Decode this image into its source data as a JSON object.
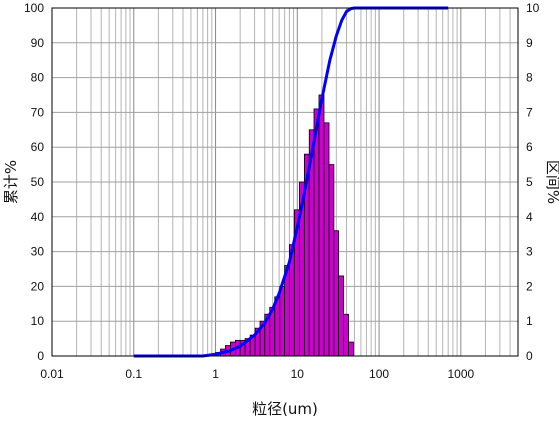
{
  "chart_data": {
    "type": "bar+line",
    "x_scale": "log",
    "xlim": [
      0.01,
      5000
    ],
    "xlabel": "粒径(um)",
    "ylabel_left": "累计%",
    "ylabel_right": "区间%",
    "ylim_left": [
      0,
      100
    ],
    "ylim_right": [
      0,
      10
    ],
    "x_ticks": [
      "0.01",
      "0.1",
      "1",
      "10",
      "100",
      "1000"
    ],
    "y_left_ticks": [
      "0",
      "10",
      "20",
      "30",
      "40",
      "50",
      "60",
      "70",
      "80",
      "90",
      "100"
    ],
    "y_right_ticks": [
      "0",
      "1",
      "2",
      "3",
      "4",
      "5",
      "6",
      "7",
      "8",
      "9",
      "10"
    ],
    "grid": true,
    "bar_color": "#cc00cc",
    "line_color": "#0000ff",
    "bar_edges": [
      1.0,
      1.15,
      1.32,
      1.52,
      1.75,
      2.0,
      2.3,
      2.65,
      3.05,
      3.5,
      4.0,
      4.6,
      5.3,
      6.1,
      7.0,
      8.0,
      9.2,
      10.6,
      12.2,
      14.0,
      16.0,
      18.4,
      21.2,
      24.4,
      28.0,
      32.0,
      36.8,
      42.3,
      48.6
    ],
    "bar_values": [
      0.1,
      0.2,
      0.3,
      0.4,
      0.45,
      0.45,
      0.5,
      0.6,
      0.8,
      1.0,
      1.2,
      1.4,
      1.7,
      2.0,
      2.6,
      3.2,
      4.2,
      5.0,
      5.8,
      6.5,
      7.1,
      7.5,
      6.7,
      5.5,
      3.6,
      2.3,
      1.2,
      0.4
    ],
    "cumulative": {
      "x": [
        0.1,
        0.7,
        1.0,
        1.5,
        2.0,
        3.0,
        4.0,
        5.0,
        6.0,
        8.0,
        10.0,
        12.0,
        15.0,
        20.0,
        25.0,
        30.0,
        35.0,
        40.0,
        45.0,
        50.0,
        100.0,
        700.0
      ],
      "y": [
        0,
        0,
        0.5,
        1.5,
        2.8,
        6.0,
        9.5,
        13.5,
        18.0,
        27.0,
        37.0,
        46.0,
        58.0,
        74.0,
        85.0,
        92.0,
        96.5,
        99.0,
        99.8,
        100,
        100,
        100
      ]
    }
  }
}
